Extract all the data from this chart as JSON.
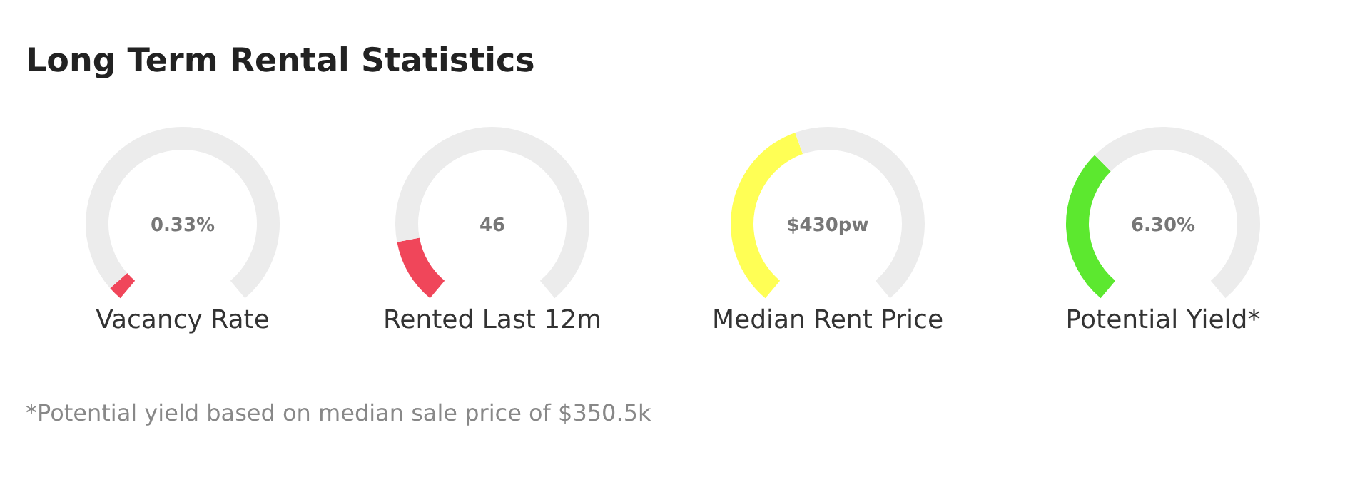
{
  "chart_data": [
    {
      "type": "other",
      "title": "Long Term Rental Statistics",
      "annotations": [
        "*Potential yield based on median sale price of $350.5k"
      ]
    },
    {
      "type": "donut",
      "title": "Vacancy Rate",
      "categories": [
        null,
        null
      ],
      "values": [
        3,
        97
      ],
      "colors": [
        "#f0465a",
        "#ececec"
      ],
      "annotations": [
        "0.33%"
      ]
    },
    {
      "type": "donut",
      "title": "Rented Last 12m",
      "categories": [
        null,
        null
      ],
      "values": [
        14,
        86
      ],
      "colors": [
        "#f0465a",
        "#ececec"
      ],
      "annotations": [
        "46"
      ]
    },
    {
      "type": "donut",
      "title": "Median Rent Price",
      "categories": [
        null,
        null
      ],
      "values": [
        43,
        57
      ],
      "colors": [
        "#ffff55",
        "#ececec"
      ],
      "annotations": [
        "$430pw"
      ]
    },
    {
      "type": "donut",
      "title": "Potential Yield*",
      "categories": [
        null,
        null
      ],
      "values": [
        34,
        66
      ],
      "colors": [
        "#5ce82f",
        "#ececec"
      ],
      "annotations": [
        "6.30%"
      ]
    }
  ]
}
